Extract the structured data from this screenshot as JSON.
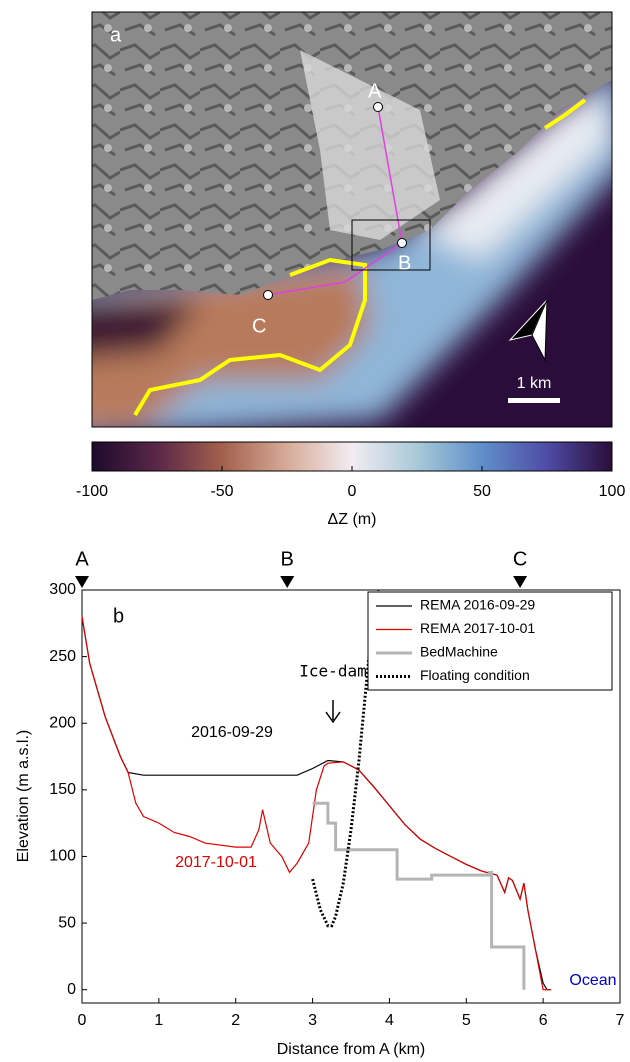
{
  "chart_data": [
    {
      "type": "map",
      "panel_label": "a",
      "point_labels": [
        "A",
        "B",
        "C"
      ],
      "scale_label": "1 km",
      "colorbar": {
        "label": "ΔZ (m)",
        "xlim": [
          -100,
          100
        ],
        "xticks": [
          -100,
          -50,
          0,
          50,
          100
        ],
        "colors": [
          "#1c0a2c",
          "#5a2748",
          "#a2604c",
          "#d6ab98",
          "#f2ecf2",
          "#a9c9d8",
          "#5f8fca",
          "#4f4ca6",
          "#2a0d3a"
        ]
      }
    },
    {
      "type": "line",
      "panel_label": "b",
      "xlabel": "Distance from A (km)",
      "ylabel": "Elevation (m a.s.l.)",
      "xlim": [
        0,
        7
      ],
      "ylim": [
        -10,
        300
      ],
      "xticks": [
        0,
        1,
        2,
        3,
        4,
        5,
        6,
        7
      ],
      "yticks": [
        0,
        50,
        100,
        150,
        200,
        250,
        300
      ],
      "legend": "upper right",
      "markers": [
        {
          "label": "A",
          "x": 0
        },
        {
          "label": "B",
          "x": 2.67
        },
        {
          "label": "C",
          "x": 5.7
        }
      ],
      "annotations": [
        {
          "text": "Ice-dam"
        },
        {
          "text": "2016-09-29"
        },
        {
          "text": "2017-10-01",
          "color": "#e00000"
        },
        {
          "text": "Ocean",
          "color": "#0000cc"
        }
      ],
      "series": [
        {
          "name": "REMA 2016-09-29",
          "color": "#000000",
          "dash": "solid",
          "x": [
            0,
            0.1,
            0.2,
            0.3,
            0.4,
            0.5,
            0.6,
            0.8,
            1,
            1.5,
            2,
            2.5,
            2.8,
            3.0,
            3.2,
            3.4,
            3.6,
            3.8,
            4,
            4.2,
            4.4,
            4.6,
            4.8,
            5,
            5.2,
            5.4,
            5.5,
            5.55,
            5.6,
            5.7,
            5.75,
            5.8,
            5.9,
            6.0,
            6.05,
            6.1
          ],
          "values": [
            280,
            245,
            225,
            205,
            190,
            175,
            163,
            161,
            161,
            161,
            161,
            161,
            161,
            166,
            172,
            171,
            165,
            152,
            138,
            124,
            113,
            106,
            100,
            94,
            89,
            86,
            73,
            84,
            82,
            68,
            80,
            60,
            30,
            5,
            0,
            0
          ]
        },
        {
          "name": "REMA 2017-10-01",
          "color": "#e00000",
          "dash": "solid",
          "x": [
            0,
            0.1,
            0.2,
            0.3,
            0.4,
            0.5,
            0.6,
            0.7,
            0.8,
            1.0,
            1.2,
            1.4,
            1.6,
            2.0,
            2.2,
            2.3,
            2.35,
            2.45,
            2.6,
            2.7,
            2.8,
            2.95,
            3.05,
            3.15,
            3.2,
            3.4,
            3.6,
            3.8,
            4,
            4.2,
            4.4,
            4.6,
            4.8,
            5,
            5.2,
            5.4,
            5.5,
            5.55,
            5.6,
            5.7,
            5.75,
            5.8,
            5.9,
            6.0,
            6.05,
            6.1
          ],
          "values": [
            280,
            245,
            225,
            205,
            190,
            175,
            163,
            140,
            130,
            125,
            118,
            115,
            110,
            107,
            107,
            120,
            135,
            110,
            100,
            88,
            95,
            110,
            150,
            168,
            170,
            171,
            165,
            152,
            138,
            124,
            113,
            106,
            100,
            94,
            89,
            86,
            73,
            84,
            82,
            68,
            80,
            60,
            30,
            0,
            0,
            0
          ]
        },
        {
          "name": "BedMachine",
          "color": "#b4b4b4",
          "dash": "solid",
          "x": [
            3.0,
            3.2,
            3.2,
            3.3,
            3.3,
            4.1,
            4.1,
            4.55,
            4.55,
            5.3,
            5.3,
            5.33,
            5.33,
            5.75,
            5.75
          ],
          "values": [
            140,
            140,
            125,
            125,
            105,
            105,
            83,
            83,
            86,
            86,
            88,
            88,
            32,
            32,
            0
          ]
        },
        {
          "name": "Floating condition",
          "color": "#000000",
          "dash": "dotted",
          "x": [
            3.0,
            3.1,
            3.2,
            3.25,
            3.3,
            3.4,
            3.5,
            3.6,
            3.7,
            3.8,
            3.85
          ],
          "values": [
            83,
            60,
            48,
            48,
            55,
            80,
            120,
            170,
            230,
            290,
            300
          ]
        }
      ]
    }
  ]
}
